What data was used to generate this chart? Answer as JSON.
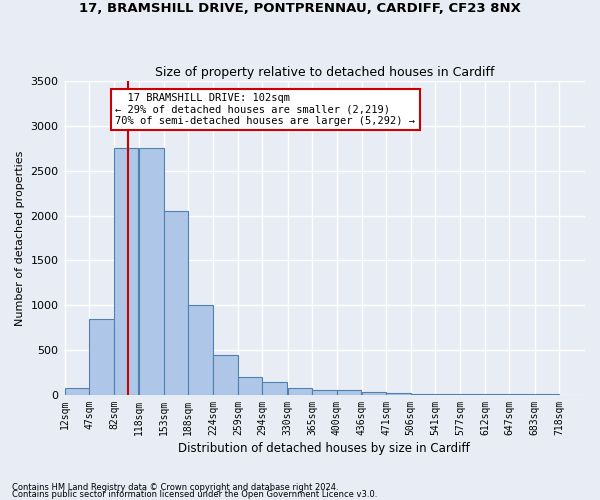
{
  "title1": "17, BRAMSHILL DRIVE, PONTPRENNAU, CARDIFF, CF23 8NX",
  "title2": "Size of property relative to detached houses in Cardiff",
  "xlabel": "Distribution of detached houses by size in Cardiff",
  "ylabel": "Number of detached properties",
  "footnote1": "Contains HM Land Registry data © Crown copyright and database right 2024.",
  "footnote2": "Contains public sector information licensed under the Open Government Licence v3.0.",
  "bins": [
    12,
    47,
    82,
    118,
    153,
    188,
    224,
    259,
    294,
    330,
    365,
    400,
    436,
    471,
    506,
    541,
    577,
    612,
    647,
    683,
    718
  ],
  "bar_heights": [
    75,
    850,
    2750,
    2750,
    2050,
    1000,
    450,
    200,
    140,
    75,
    50,
    50,
    30,
    25,
    15,
    10,
    7,
    5,
    5,
    5
  ],
  "bar_color": "#aec6e8",
  "bar_edge_color": "#5080b0",
  "bg_color": "#e8edf5",
  "grid_color": "#ffffff",
  "vline_x": 102,
  "vline_color": "#cc0000",
  "annotation_text": "  17 BRAMSHILL DRIVE: 102sqm\n← 29% of detached houses are smaller (2,219)\n70% of semi-detached houses are larger (5,292) →",
  "annotation_box_color": "#ffffff",
  "annotation_border_color": "#cc0000",
  "ylim": [
    0,
    3500
  ],
  "yticks": [
    0,
    500,
    1000,
    1500,
    2000,
    2500,
    3000,
    3500
  ]
}
